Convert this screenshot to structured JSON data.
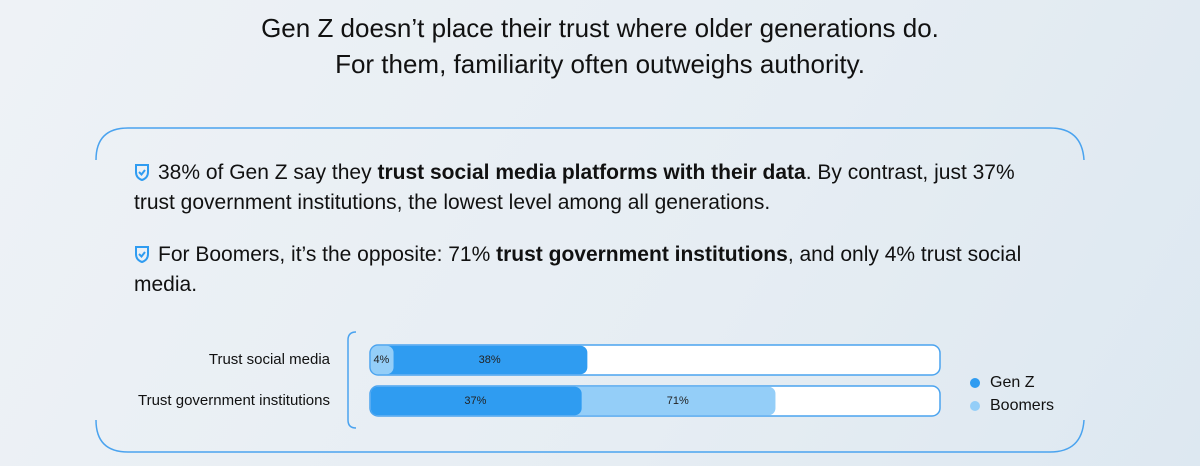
{
  "header": {
    "lines": [
      "Gen Z doesn’t place their trust where older generations do.",
      "For them, familiarity often outweighs authority."
    ]
  },
  "points": [
    {
      "before": "38% of Gen Z say they ",
      "bold": "trust social media platforms with their data",
      "after": ". By contrast, just 37% trust government institutions, the lowest level among all generations."
    },
    {
      "before": "For Boomers, it’s the opposite: 71% ",
      "bold": "trust government institutions",
      "after": ", and only 4% trust social media."
    }
  ],
  "chart_data": {
    "type": "bar",
    "categories": [
      "Trust social media",
      "Trust government institutions"
    ],
    "series": [
      {
        "name": "Gen Z",
        "color": "#2f9cf1",
        "values": [
          38,
          37
        ],
        "value_labels": [
          "38%",
          "37%"
        ]
      },
      {
        "name": "Boomers",
        "color": "#94cef8",
        "values": [
          4,
          71
        ],
        "value_labels": [
          "4%",
          "71%"
        ]
      }
    ],
    "xlim": [
      0,
      100
    ]
  }
}
